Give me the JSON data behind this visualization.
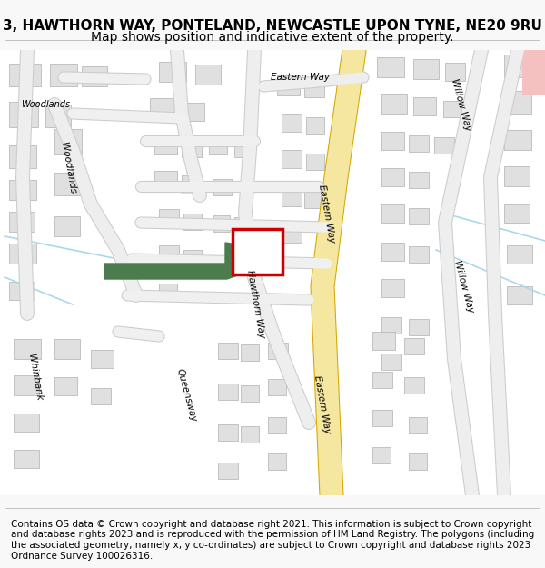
{
  "title_line1": "3, HAWTHORN WAY, PONTELAND, NEWCASTLE UPON TYNE, NE20 9RU",
  "title_line2": "Map shows position and indicative extent of the property.",
  "footer": "Contains OS data © Crown copyright and database right 2021. This information is subject to Crown copyright and database rights 2023 and is reproduced with the permission of HM Land Registry. The polygons (including the associated geometry, namely x, y co-ordinates) are subject to Crown copyright and database rights 2023 Ordnance Survey 100026316.",
  "background_color": "#f8f8f8",
  "map_background": "#ffffff",
  "building_color": "#e0e0e0",
  "building_outline": "#b0b0b0",
  "main_road_fill": "#f5e6a0",
  "main_road_outline": "#d4a800",
  "green_patch_color": "#4a7c4e",
  "red_box_color": "#cc0000",
  "title_fontsize": 11,
  "footer_fontsize": 7.5
}
